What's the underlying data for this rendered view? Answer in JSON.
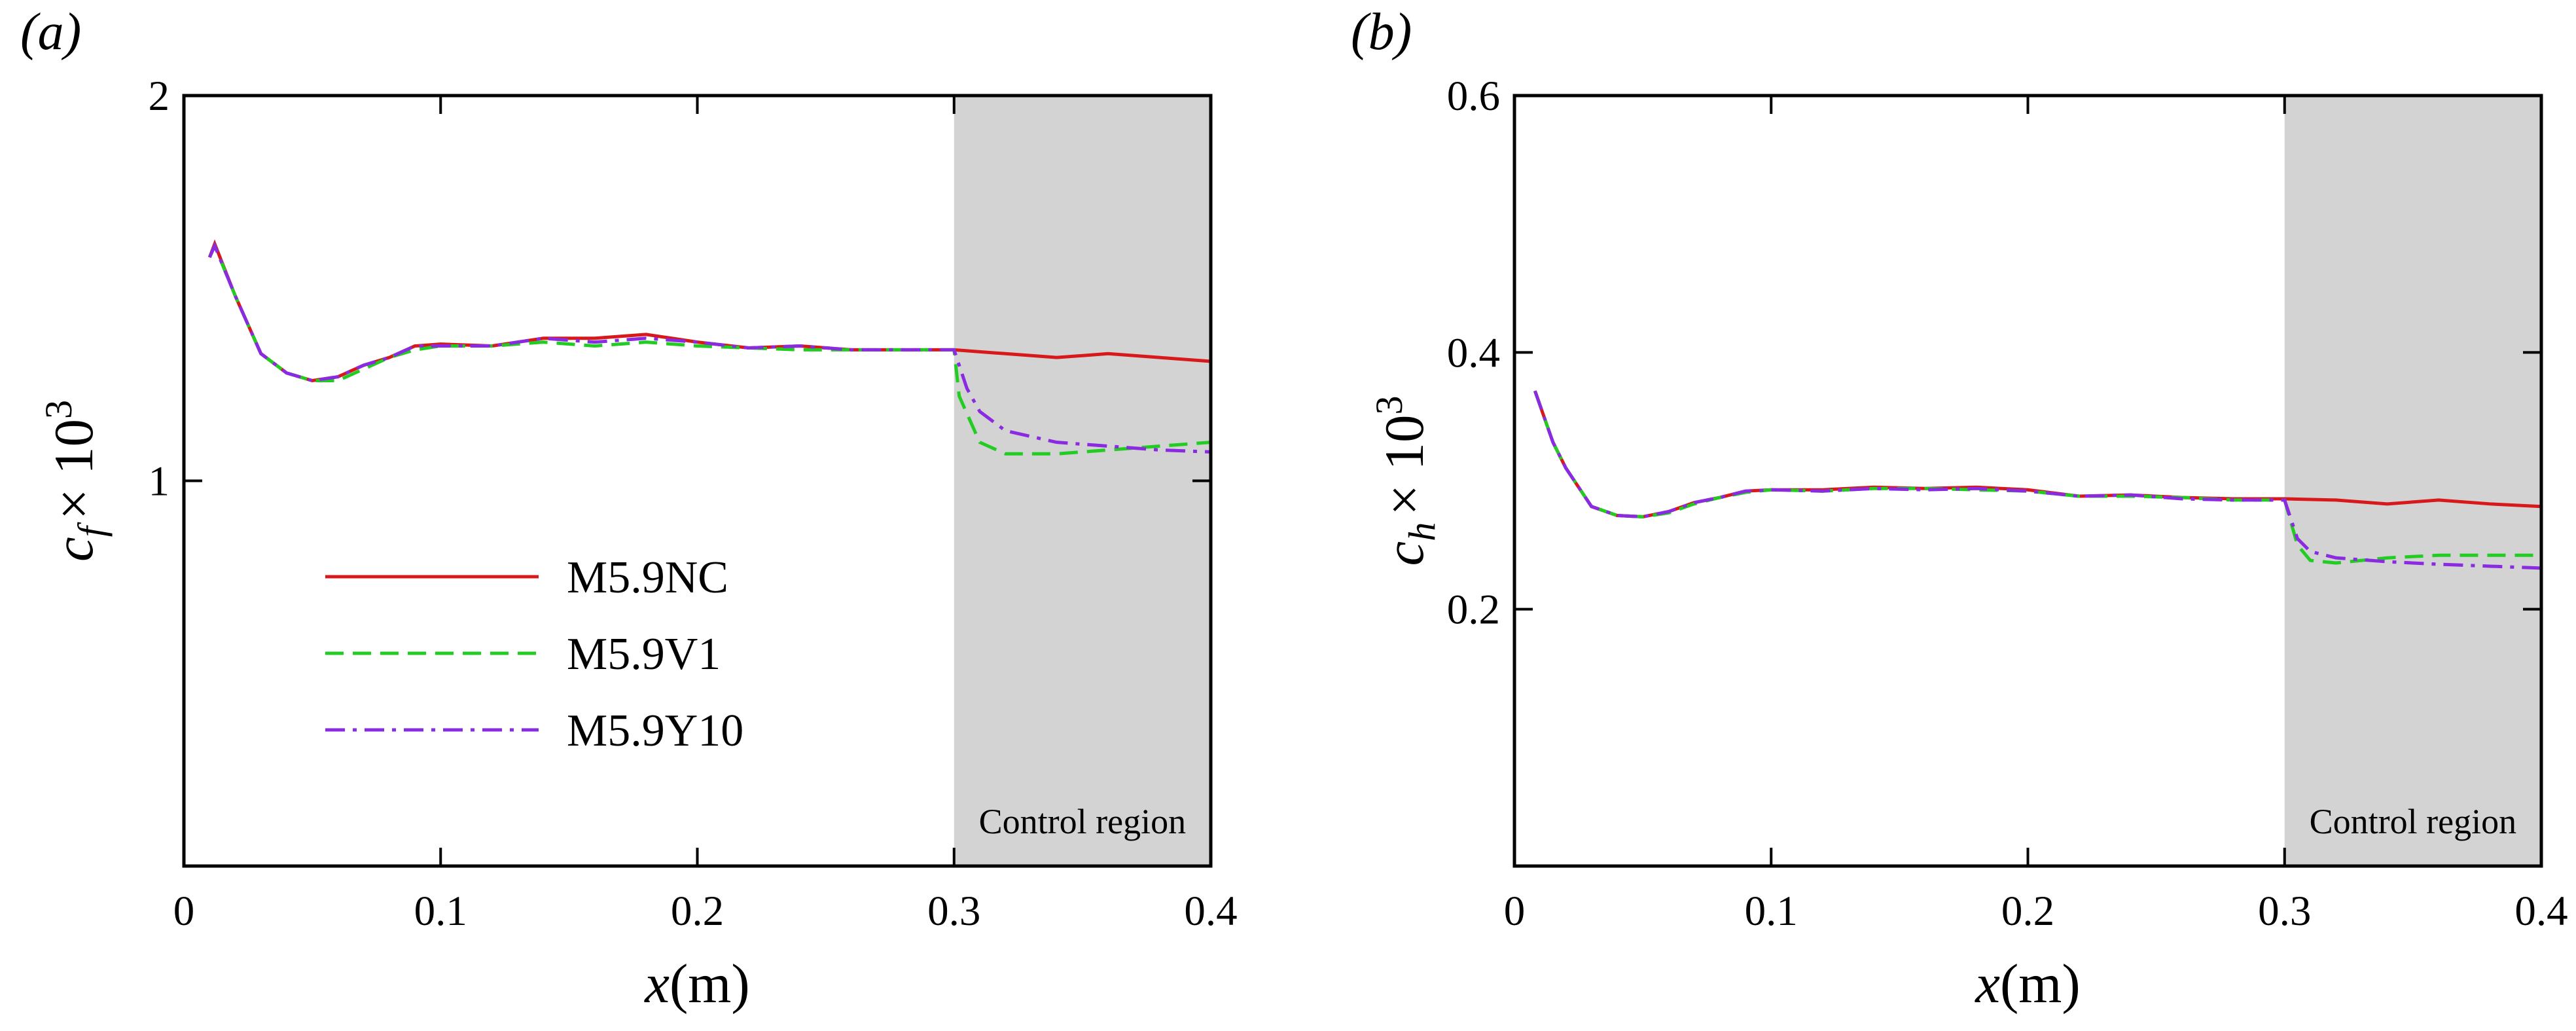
{
  "chart_data": [
    {
      "type": "line",
      "panel": "(a)",
      "xlabel": {
        "symbol": "x",
        "unit": "(m)"
      },
      "ylabel": {
        "symbol": "c",
        "subscript": "f",
        "factor": "× 10",
        "exponent": "3"
      },
      "xlim": [
        0,
        0.4
      ],
      "xticks": [
        0,
        0.1,
        0.2,
        0.3,
        0.4
      ],
      "ylim": [
        0,
        2
      ],
      "yticks": [
        1,
        2
      ],
      "shade": [
        0.3,
        0.4
      ],
      "shade_color": "#d3d3d3",
      "annotation": "Control region",
      "legend": "lower left",
      "series": [
        {
          "name": "M5.9NC",
          "color": "#d7191c",
          "dash": "solid",
          "x": [
            0.01,
            0.012,
            0.02,
            0.03,
            0.04,
            0.05,
            0.06,
            0.07,
            0.08,
            0.09,
            0.1,
            0.12,
            0.14,
            0.16,
            0.18,
            0.2,
            0.22,
            0.24,
            0.26,
            0.28,
            0.3,
            0.32,
            0.34,
            0.36,
            0.38,
            0.4
          ],
          "values": [
            1.58,
            1.615,
            1.48,
            1.33,
            1.28,
            1.26,
            1.27,
            1.3,
            1.32,
            1.35,
            1.355,
            1.35,
            1.37,
            1.37,
            1.38,
            1.36,
            1.345,
            1.35,
            1.34,
            1.34,
            1.34,
            1.33,
            1.32,
            1.33,
            1.32,
            1.31
          ]
        },
        {
          "name": "M5.9V1",
          "color": "#22cc22",
          "dash": "dashed",
          "x": [
            0.01,
            0.012,
            0.02,
            0.03,
            0.04,
            0.05,
            0.06,
            0.07,
            0.08,
            0.09,
            0.1,
            0.12,
            0.14,
            0.16,
            0.18,
            0.2,
            0.22,
            0.24,
            0.26,
            0.28,
            0.3,
            0.302,
            0.31,
            0.32,
            0.34,
            0.36,
            0.38,
            0.4
          ],
          "values": [
            1.58,
            1.61,
            1.48,
            1.33,
            1.28,
            1.26,
            1.26,
            1.29,
            1.32,
            1.34,
            1.35,
            1.35,
            1.36,
            1.35,
            1.36,
            1.35,
            1.345,
            1.34,
            1.34,
            1.34,
            1.34,
            1.22,
            1.1,
            1.07,
            1.07,
            1.08,
            1.09,
            1.1
          ]
        },
        {
          "name": "M5.9Y10",
          "color": "#8a2be2",
          "dash": "dashdot",
          "x": [
            0.01,
            0.012,
            0.02,
            0.03,
            0.04,
            0.05,
            0.06,
            0.07,
            0.08,
            0.09,
            0.1,
            0.12,
            0.14,
            0.16,
            0.18,
            0.2,
            0.22,
            0.24,
            0.26,
            0.28,
            0.3,
            0.305,
            0.31,
            0.32,
            0.34,
            0.36,
            0.38,
            0.4
          ],
          "values": [
            1.58,
            1.61,
            1.48,
            1.33,
            1.28,
            1.26,
            1.27,
            1.3,
            1.32,
            1.35,
            1.35,
            1.35,
            1.37,
            1.36,
            1.37,
            1.36,
            1.345,
            1.35,
            1.34,
            1.34,
            1.34,
            1.24,
            1.18,
            1.13,
            1.1,
            1.09,
            1.08,
            1.075
          ]
        }
      ]
    },
    {
      "type": "line",
      "panel": "(b)",
      "xlabel": {
        "symbol": "x",
        "unit": "(m)"
      },
      "ylabel": {
        "symbol": "c",
        "subscript": "h",
        "factor": "× 10",
        "exponent": "3"
      },
      "xlim": [
        0,
        0.4
      ],
      "xticks": [
        0,
        0.1,
        0.2,
        0.3,
        0.4
      ],
      "ylim": [
        0,
        0.6
      ],
      "yticks": [
        0.2,
        0.4,
        0.6
      ],
      "shade": [
        0.3,
        0.4
      ],
      "shade_color": "#d3d3d3",
      "annotation": "Control region",
      "series": [
        {
          "color": "#d7191c",
          "dash": "solid",
          "x": [
            0.008,
            0.015,
            0.02,
            0.03,
            0.04,
            0.05,
            0.06,
            0.07,
            0.08,
            0.09,
            0.1,
            0.12,
            0.14,
            0.16,
            0.18,
            0.2,
            0.22,
            0.24,
            0.26,
            0.28,
            0.3,
            0.32,
            0.34,
            0.36,
            0.38,
            0.4
          ],
          "values": [
            0.37,
            0.33,
            0.31,
            0.28,
            0.273,
            0.272,
            0.276,
            0.283,
            0.287,
            0.292,
            0.293,
            0.293,
            0.295,
            0.294,
            0.295,
            0.293,
            0.288,
            0.289,
            0.287,
            0.286,
            0.286,
            0.285,
            0.282,
            0.285,
            0.282,
            0.28
          ]
        },
        {
          "color": "#22cc22",
          "dash": "dashed",
          "x": [
            0.008,
            0.015,
            0.02,
            0.03,
            0.04,
            0.05,
            0.06,
            0.07,
            0.08,
            0.09,
            0.1,
            0.12,
            0.14,
            0.16,
            0.18,
            0.2,
            0.22,
            0.24,
            0.26,
            0.28,
            0.3,
            0.305,
            0.31,
            0.32,
            0.34,
            0.36,
            0.4
          ],
          "values": [
            0.37,
            0.33,
            0.31,
            0.28,
            0.273,
            0.272,
            0.275,
            0.282,
            0.287,
            0.291,
            0.293,
            0.292,
            0.294,
            0.294,
            0.293,
            0.292,
            0.288,
            0.288,
            0.287,
            0.285,
            0.285,
            0.25,
            0.238,
            0.236,
            0.24,
            0.242,
            0.242
          ]
        },
        {
          "color": "#8a2be2",
          "dash": "dashdot",
          "x": [
            0.008,
            0.015,
            0.02,
            0.03,
            0.04,
            0.05,
            0.06,
            0.07,
            0.08,
            0.09,
            0.1,
            0.12,
            0.14,
            0.16,
            0.18,
            0.2,
            0.22,
            0.24,
            0.26,
            0.28,
            0.3,
            0.305,
            0.31,
            0.32,
            0.34,
            0.36,
            0.4
          ],
          "values": [
            0.37,
            0.33,
            0.31,
            0.28,
            0.273,
            0.272,
            0.276,
            0.283,
            0.287,
            0.292,
            0.293,
            0.292,
            0.294,
            0.293,
            0.294,
            0.292,
            0.288,
            0.289,
            0.286,
            0.285,
            0.285,
            0.255,
            0.245,
            0.24,
            0.237,
            0.235,
            0.232
          ]
        }
      ]
    }
  ]
}
